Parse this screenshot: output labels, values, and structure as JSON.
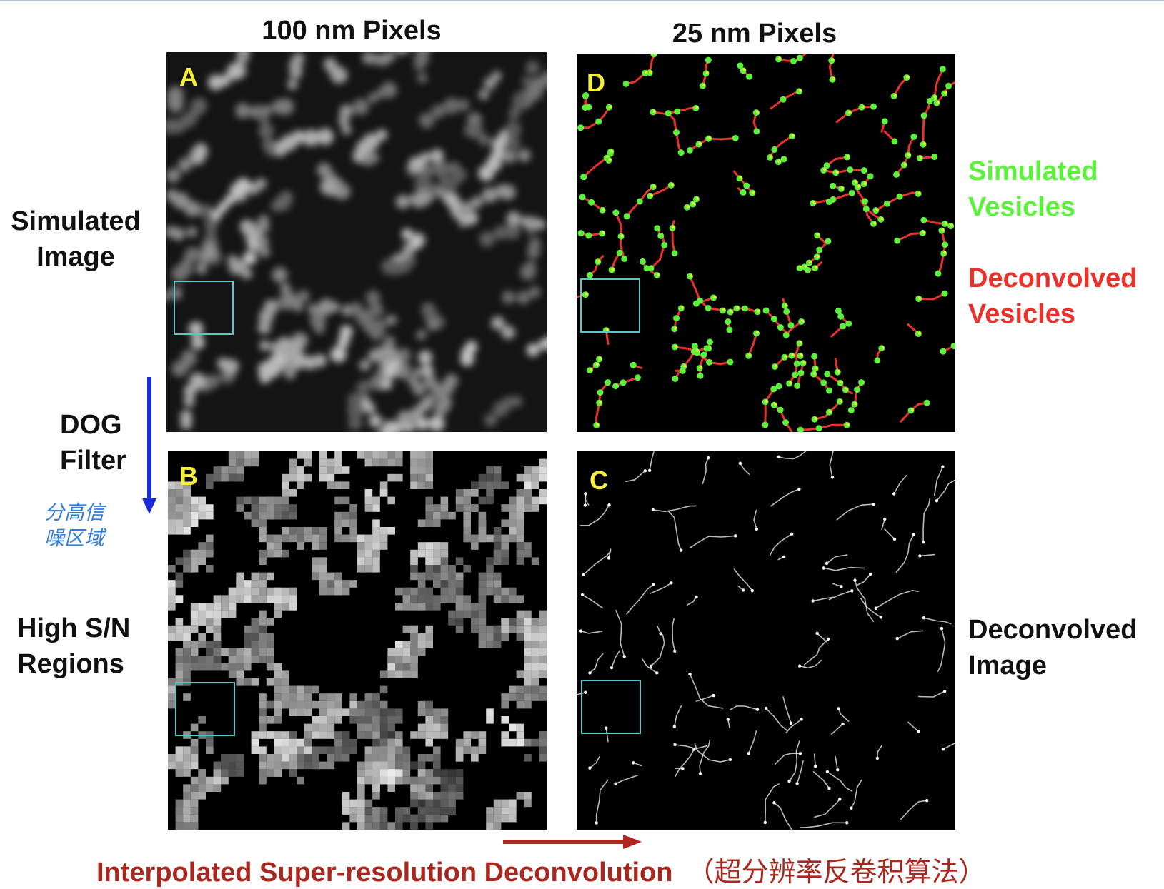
{
  "column_titles": {
    "left": "100 nm Pixels",
    "right": "25 nm Pixels"
  },
  "row_labels": {
    "top": [
      "Simulated",
      "Image"
    ],
    "middle": [
      "DOG",
      "Filter"
    ],
    "bottom": [
      "High S/N",
      "Regions"
    ]
  },
  "handwritten_note": "分高信噪区域",
  "panels": {
    "a": "A",
    "b": "B",
    "c": "C",
    "d": "D"
  },
  "legend": {
    "simulated": [
      "Simulated",
      "Vesicles"
    ],
    "deconvolved": [
      "Deconvolved",
      "Vesicles"
    ]
  },
  "right_label": [
    "Deconvolved",
    "Image"
  ],
  "footer": {
    "text": "Interpolated Super-resolution Deconvolution",
    "chinese": "（超分辨率反卷积算法）"
  },
  "colors": {
    "letter": "#f5ef3a",
    "simulated": "#5cf23c",
    "deconvolved": "#e8322b",
    "roi": "#5ec5c9",
    "arrow_blue": "#1a2bd9",
    "arrow_red": "#b22420"
  }
}
